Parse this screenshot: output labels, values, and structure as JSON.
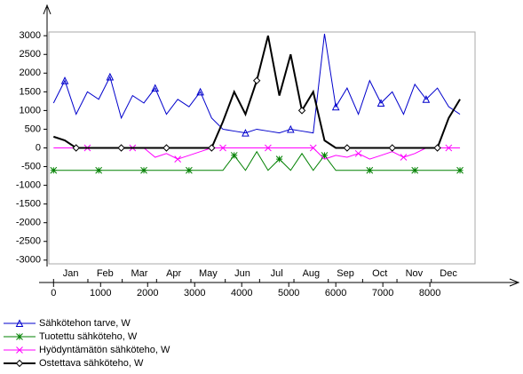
{
  "chart_data": {
    "type": "line",
    "x": [
      0,
      240,
      480,
      720,
      960,
      1200,
      1440,
      1680,
      1920,
      2160,
      2400,
      2640,
      2880,
      3120,
      3360,
      3600,
      3840,
      4080,
      4320,
      4560,
      4800,
      5040,
      5280,
      5520,
      5760,
      6000,
      6240,
      6480,
      6720,
      6960,
      7200,
      7440,
      7680,
      7920,
      8160,
      8400,
      8640
    ],
    "series": [
      {
        "name": "Sähkötehon tarve, W",
        "color": "#0000cc",
        "marker": "triangle",
        "values": [
          1200,
          1800,
          900,
          1500,
          1300,
          1900,
          800,
          1400,
          1200,
          1600,
          900,
          1300,
          1100,
          1500,
          800,
          500,
          450,
          400,
          500,
          450,
          400,
          500,
          450,
          400,
          3050,
          1100,
          1600,
          900,
          1800,
          1200,
          1500,
          900,
          1700,
          1300,
          1600,
          1100,
          900
        ]
      },
      {
        "name": "Tuotettu sähköteho, W",
        "color": "#008000",
        "marker": "star",
        "values": [
          -600,
          -600,
          -600,
          -600,
          -600,
          -600,
          -600,
          -600,
          -600,
          -600,
          -600,
          -600,
          -600,
          -600,
          -600,
          -600,
          -200,
          -600,
          -100,
          -600,
          -300,
          -600,
          -150,
          -600,
          -200,
          -600,
          -600,
          -600,
          -600,
          -600,
          -600,
          -600,
          -600,
          -600,
          -600,
          -600,
          -600
        ]
      },
      {
        "name": "Hyödyntämätön sähköteho, W",
        "color": "#ff00ff",
        "marker": "cross",
        "values": [
          0,
          0,
          0,
          0,
          0,
          0,
          0,
          0,
          0,
          -250,
          -150,
          -300,
          -200,
          -100,
          0,
          0,
          0,
          0,
          0,
          0,
          0,
          0,
          0,
          0,
          -300,
          -200,
          -250,
          -150,
          -300,
          -200,
          -100,
          -250,
          -150,
          0,
          0,
          0,
          0
        ]
      },
      {
        "name": "Ostettava sähköteho, W",
        "color": "#000000",
        "marker": "diamond",
        "values": [
          300,
          200,
          0,
          0,
          0,
          0,
          0,
          0,
          0,
          0,
          0,
          0,
          0,
          0,
          0,
          700,
          1500,
          900,
          1800,
          3000,
          1400,
          2500,
          1000,
          1500,
          200,
          0,
          0,
          0,
          0,
          0,
          0,
          0,
          0,
          0,
          0,
          800,
          1300
        ]
      }
    ],
    "months": [
      "Jan",
      "Feb",
      "Mar",
      "Apr",
      "May",
      "Jun",
      "Jul",
      "Aug",
      "Sep",
      "Oct",
      "Nov",
      "Dec"
    ],
    "xlim": [
      -100,
      8960
    ],
    "ylim": [
      -3100,
      3100
    ],
    "xticks": [
      0,
      1000,
      2000,
      3000,
      4000,
      5000,
      6000,
      7000,
      8000
    ],
    "yticks": [
      -3000,
      -2500,
      -2000,
      -1500,
      -1000,
      -500,
      0,
      500,
      1000,
      1500,
      2000,
      2500,
      3000
    ]
  }
}
